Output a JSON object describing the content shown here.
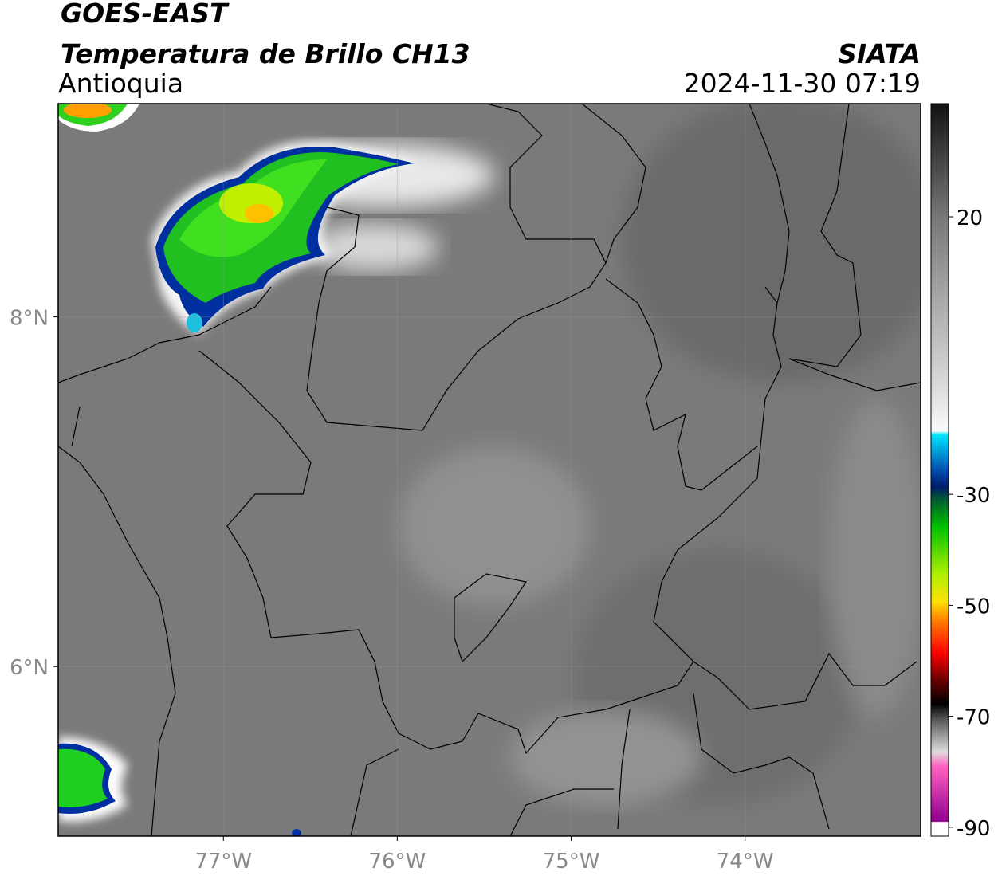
{
  "header": {
    "satellite": "GOES-EAST",
    "product": "Temperatura de Brillo CH13",
    "region": "Antioquia",
    "source": "SIATA",
    "datetime": "2024-11-30 07:19"
  },
  "map": {
    "xlim": [
      -77.95,
      -72.99
    ],
    "ylim": [
      5.03,
      9.22
    ],
    "xticks": [
      {
        "value": -77,
        "label": "77°W"
      },
      {
        "value": -76,
        "label": "76°W"
      },
      {
        "value": -75,
        "label": "75°W"
      },
      {
        "value": -74,
        "label": "74°W"
      }
    ],
    "yticks": [
      {
        "value": 6,
        "label": "6°N"
      },
      {
        "value": 8,
        "label": "8°N"
      }
    ],
    "grid": true
  },
  "colorbar": {
    "lim": [
      -91.6,
      40.4
    ],
    "ticks": [
      20,
      -30,
      -50,
      -70,
      -90
    ]
  }
}
